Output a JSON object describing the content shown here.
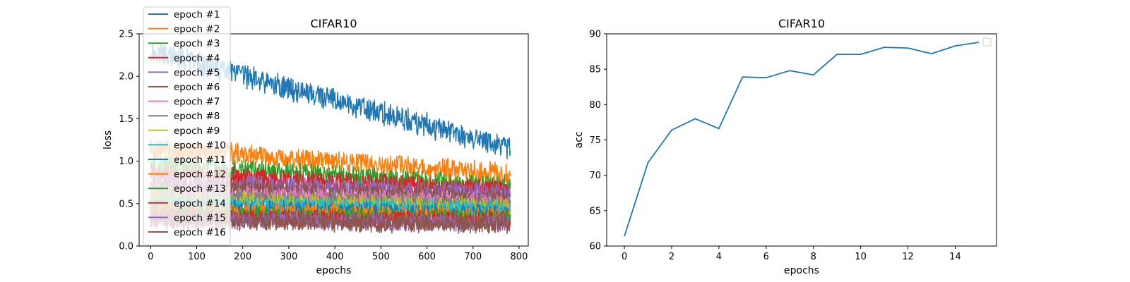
{
  "chart_data": [
    {
      "type": "line",
      "title": "CIFAR10",
      "xlabel": "epochs",
      "ylabel": "loss",
      "xlim": [
        -25,
        820
      ],
      "ylim": [
        0,
        2.5
      ],
      "xticks": [
        0,
        100,
        200,
        300,
        400,
        500,
        600,
        700,
        800
      ],
      "yticks": [
        0.0,
        0.5,
        1.0,
        1.5,
        2.0,
        2.5
      ],
      "xtick_labels": [
        "0",
        "100",
        "200",
        "300",
        "400",
        "500",
        "600",
        "700",
        "800"
      ],
      "ytick_labels": [
        "0.0",
        "0.5",
        "1.0",
        "1.5",
        "2.0",
        "2.5"
      ],
      "grid": false,
      "legend_position": "upper-left",
      "points_per_series": 782,
      "series": [
        {
          "name": "epoch #1",
          "color": "#1f77b4",
          "start": 2.3,
          "end": 1.15,
          "noise": 0.13
        },
        {
          "name": "epoch #2",
          "color": "#ff7f0e",
          "start": 1.15,
          "end": 0.85,
          "noise": 0.12
        },
        {
          "name": "epoch #3",
          "color": "#2ca02c",
          "start": 0.95,
          "end": 0.7,
          "noise": 0.12
        },
        {
          "name": "epoch #4",
          "color": "#d62728",
          "start": 0.85,
          "end": 0.65,
          "noise": 0.12
        },
        {
          "name": "epoch #5",
          "color": "#9467bd",
          "start": 0.75,
          "end": 0.6,
          "noise": 0.12
        },
        {
          "name": "epoch #6",
          "color": "#8c564b",
          "start": 0.7,
          "end": 0.55,
          "noise": 0.11
        },
        {
          "name": "epoch #7",
          "color": "#e377c2",
          "start": 0.62,
          "end": 0.5,
          "noise": 0.11
        },
        {
          "name": "epoch #8",
          "color": "#7f7f7f",
          "start": 0.58,
          "end": 0.47,
          "noise": 0.11
        },
        {
          "name": "epoch #9",
          "color": "#bcbd22",
          "start": 0.55,
          "end": 0.45,
          "noise": 0.11
        },
        {
          "name": "epoch #10",
          "color": "#17becf",
          "start": 0.5,
          "end": 0.42,
          "noise": 0.1
        },
        {
          "name": "epoch #11",
          "color": "#1f77b4",
          "start": 0.45,
          "end": 0.38,
          "noise": 0.1
        },
        {
          "name": "epoch #12",
          "color": "#ff7f0e",
          "start": 0.42,
          "end": 0.35,
          "noise": 0.1
        },
        {
          "name": "epoch #13",
          "color": "#2ca02c",
          "start": 0.38,
          "end": 0.32,
          "noise": 0.1
        },
        {
          "name": "epoch #14",
          "color": "#d62728",
          "start": 0.35,
          "end": 0.3,
          "noise": 0.1
        },
        {
          "name": "epoch #15",
          "color": "#9467bd",
          "start": 0.32,
          "end": 0.27,
          "noise": 0.1
        },
        {
          "name": "epoch #16",
          "color": "#8c564b",
          "start": 0.3,
          "end": 0.25,
          "noise": 0.1
        }
      ]
    },
    {
      "type": "line",
      "title": "CIFAR10",
      "xlabel": "epochs",
      "ylabel": "acc",
      "xlim": [
        -0.75,
        15.75
      ],
      "ylim": [
        60,
        90
      ],
      "xticks": [
        0,
        2,
        4,
        6,
        8,
        10,
        12,
        14
      ],
      "yticks": [
        60,
        65,
        70,
        75,
        80,
        85,
        90
      ],
      "xtick_labels": [
        "0",
        "2",
        "4",
        "6",
        "8",
        "10",
        "12",
        "14"
      ],
      "ytick_labels": [
        "60",
        "65",
        "70",
        "75",
        "80",
        "85",
        "90"
      ],
      "grid": false,
      "legend_position": "upper-right",
      "series": [
        {
          "color": "#1f77b4",
          "x": [
            0,
            1,
            2,
            3,
            4,
            5,
            6,
            7,
            8,
            9,
            10,
            11,
            12,
            13,
            14,
            15
          ],
          "y": [
            61.4,
            71.8,
            76.4,
            78.0,
            76.6,
            83.9,
            83.8,
            84.8,
            84.2,
            87.1,
            87.1,
            88.1,
            88.0,
            87.2,
            88.3,
            88.8
          ]
        }
      ]
    }
  ]
}
